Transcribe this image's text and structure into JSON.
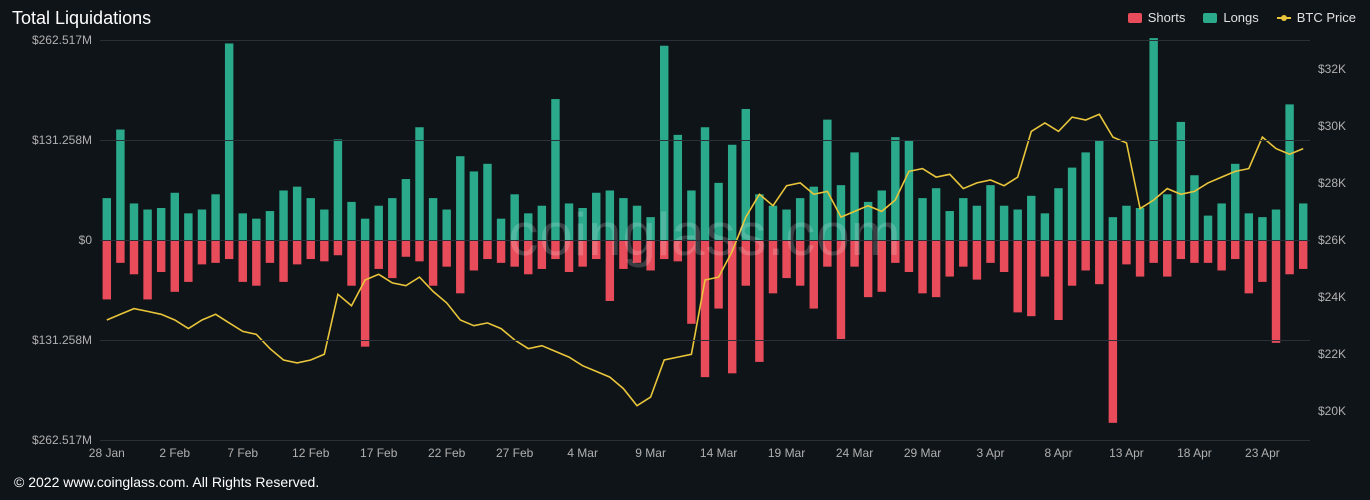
{
  "title": "Total Liquidations",
  "watermark": "coinglass.com",
  "footer": "© 2022 www.coinglass.com. All Rights Reserved.",
  "legend": {
    "shorts": {
      "label": "Shorts",
      "color": "#e84c5a"
    },
    "longs": {
      "label": "Longs",
      "color": "#2aa98b"
    },
    "price": {
      "label": "BTC Price",
      "color": "#e8c53a"
    }
  },
  "chart": {
    "background_color": "#0f1419",
    "grid_color": "#2a2f38",
    "bar_width_ratio": 0.62,
    "left_axis": {
      "max": 262.517,
      "ticks": [
        {
          "value": 262.517,
          "label": "$262.517M"
        },
        {
          "value": 131.258,
          "label": "$131.258M"
        },
        {
          "value": 0,
          "label": "$0"
        },
        {
          "value": -131.258,
          "label": "$131.258M"
        },
        {
          "value": -262.517,
          "label": "$262.517M"
        }
      ]
    },
    "right_axis": {
      "min": 19000,
      "max": 33000,
      "ticks": [
        {
          "value": 32000,
          "label": "$32K"
        },
        {
          "value": 30000,
          "label": "$30K"
        },
        {
          "value": 28000,
          "label": "$28K"
        },
        {
          "value": 26000,
          "label": "$26K"
        },
        {
          "value": 24000,
          "label": "$24K"
        },
        {
          "value": 22000,
          "label": "$22K"
        },
        {
          "value": 20000,
          "label": "$20K"
        }
      ]
    },
    "x_ticks": [
      {
        "index": 0,
        "label": "28 Jan"
      },
      {
        "index": 5,
        "label": "2 Feb"
      },
      {
        "index": 10,
        "label": "7 Feb"
      },
      {
        "index": 15,
        "label": "12 Feb"
      },
      {
        "index": 20,
        "label": "17 Feb"
      },
      {
        "index": 25,
        "label": "22 Feb"
      },
      {
        "index": 30,
        "label": "27 Feb"
      },
      {
        "index": 35,
        "label": "4 Mar"
      },
      {
        "index": 40,
        "label": "9 Mar"
      },
      {
        "index": 45,
        "label": "14 Mar"
      },
      {
        "index": 50,
        "label": "19 Mar"
      },
      {
        "index": 55,
        "label": "24 Mar"
      },
      {
        "index": 60,
        "label": "29 Mar"
      },
      {
        "index": 65,
        "label": "3 Apr"
      },
      {
        "index": 70,
        "label": "8 Apr"
      },
      {
        "index": 75,
        "label": "13 Apr"
      },
      {
        "index": 80,
        "label": "18 Apr"
      },
      {
        "index": 85,
        "label": "23 Apr"
      }
    ],
    "data": [
      {
        "longs": 55,
        "shorts": 78,
        "price": 23200
      },
      {
        "longs": 145,
        "shorts": 30,
        "price": 23400
      },
      {
        "longs": 48,
        "shorts": 45,
        "price": 23600
      },
      {
        "longs": 40,
        "shorts": 78,
        "price": 23500
      },
      {
        "longs": 42,
        "shorts": 42,
        "price": 23400
      },
      {
        "longs": 62,
        "shorts": 68,
        "price": 23200
      },
      {
        "longs": 35,
        "shorts": 55,
        "price": 22900
      },
      {
        "longs": 40,
        "shorts": 32,
        "price": 23200
      },
      {
        "longs": 60,
        "shorts": 30,
        "price": 23400
      },
      {
        "longs": 258,
        "shorts": 25,
        "price": 23100
      },
      {
        "longs": 35,
        "shorts": 55,
        "price": 22800
      },
      {
        "longs": 28,
        "shorts": 60,
        "price": 22700
      },
      {
        "longs": 38,
        "shorts": 30,
        "price": 22200
      },
      {
        "longs": 65,
        "shorts": 55,
        "price": 21800
      },
      {
        "longs": 70,
        "shorts": 32,
        "price": 21700
      },
      {
        "longs": 55,
        "shorts": 25,
        "price": 21800
      },
      {
        "longs": 40,
        "shorts": 28,
        "price": 22000
      },
      {
        "longs": 132,
        "shorts": 20,
        "price": 24100
      },
      {
        "longs": 50,
        "shorts": 60,
        "price": 23700
      },
      {
        "longs": 28,
        "shorts": 140,
        "price": 24600
      },
      {
        "longs": 45,
        "shorts": 38,
        "price": 24800
      },
      {
        "longs": 55,
        "shorts": 50,
        "price": 24500
      },
      {
        "longs": 80,
        "shorts": 22,
        "price": 24400
      },
      {
        "longs": 148,
        "shorts": 28,
        "price": 24700
      },
      {
        "longs": 55,
        "shorts": 60,
        "price": 24200
      },
      {
        "longs": 40,
        "shorts": 35,
        "price": 23800
      },
      {
        "longs": 110,
        "shorts": 70,
        "price": 23200
      },
      {
        "longs": 90,
        "shorts": 40,
        "price": 23000
      },
      {
        "longs": 100,
        "shorts": 25,
        "price": 23100
      },
      {
        "longs": 28,
        "shorts": 30,
        "price": 22900
      },
      {
        "longs": 60,
        "shorts": 35,
        "price": 22500
      },
      {
        "longs": 35,
        "shorts": 45,
        "price": 22200
      },
      {
        "longs": 45,
        "shorts": 38,
        "price": 22300
      },
      {
        "longs": 185,
        "shorts": 25,
        "price": 22100
      },
      {
        "longs": 48,
        "shorts": 42,
        "price": 21900
      },
      {
        "longs": 42,
        "shorts": 35,
        "price": 21600
      },
      {
        "longs": 62,
        "shorts": 25,
        "price": 21400
      },
      {
        "longs": 65,
        "shorts": 80,
        "price": 21200
      },
      {
        "longs": 55,
        "shorts": 38,
        "price": 20800
      },
      {
        "longs": 45,
        "shorts": 30,
        "price": 20200
      },
      {
        "longs": 30,
        "shorts": 40,
        "price": 20500
      },
      {
        "longs": 255,
        "shorts": 25,
        "price": 21800
      },
      {
        "longs": 138,
        "shorts": 28,
        "price": 21900
      },
      {
        "longs": 65,
        "shorts": 110,
        "price": 22000
      },
      {
        "longs": 148,
        "shorts": 180,
        "price": 24600
      },
      {
        "longs": 75,
        "shorts": 90,
        "price": 24700
      },
      {
        "longs": 125,
        "shorts": 175,
        "price": 25600
      },
      {
        "longs": 172,
        "shorts": 60,
        "price": 26800
      },
      {
        "longs": 60,
        "shorts": 160,
        "price": 27600
      },
      {
        "longs": 45,
        "shorts": 70,
        "price": 27200
      },
      {
        "longs": 40,
        "shorts": 50,
        "price": 27900
      },
      {
        "longs": 55,
        "shorts": 60,
        "price": 28000
      },
      {
        "longs": 70,
        "shorts": 90,
        "price": 27600
      },
      {
        "longs": 158,
        "shorts": 35,
        "price": 27700
      },
      {
        "longs": 72,
        "shorts": 130,
        "price": 26800
      },
      {
        "longs": 115,
        "shorts": 35,
        "price": 27000
      },
      {
        "longs": 50,
        "shorts": 75,
        "price": 27200
      },
      {
        "longs": 65,
        "shorts": 68,
        "price": 27000
      },
      {
        "longs": 135,
        "shorts": 30,
        "price": 27400
      },
      {
        "longs": 130,
        "shorts": 42,
        "price": 28400
      },
      {
        "longs": 55,
        "shorts": 70,
        "price": 28500
      },
      {
        "longs": 68,
        "shorts": 75,
        "price": 28200
      },
      {
        "longs": 38,
        "shorts": 48,
        "price": 28300
      },
      {
        "longs": 55,
        "shorts": 35,
        "price": 27800
      },
      {
        "longs": 45,
        "shorts": 52,
        "price": 28000
      },
      {
        "longs": 72,
        "shorts": 30,
        "price": 28100
      },
      {
        "longs": 45,
        "shorts": 42,
        "price": 27900
      },
      {
        "longs": 40,
        "shorts": 95,
        "price": 28200
      },
      {
        "longs": 58,
        "shorts": 100,
        "price": 29800
      },
      {
        "longs": 35,
        "shorts": 48,
        "price": 30100
      },
      {
        "longs": 68,
        "shorts": 105,
        "price": 29800
      },
      {
        "longs": 95,
        "shorts": 60,
        "price": 30300
      },
      {
        "longs": 115,
        "shorts": 40,
        "price": 30200
      },
      {
        "longs": 130,
        "shorts": 58,
        "price": 30400
      },
      {
        "longs": 30,
        "shorts": 240,
        "price": 29600
      },
      {
        "longs": 45,
        "shorts": 32,
        "price": 29400
      },
      {
        "longs": 42,
        "shorts": 48,
        "price": 27100
      },
      {
        "longs": 265,
        "shorts": 30,
        "price": 27400
      },
      {
        "longs": 60,
        "shorts": 48,
        "price": 27800
      },
      {
        "longs": 155,
        "shorts": 25,
        "price": 27600
      },
      {
        "longs": 85,
        "shorts": 30,
        "price": 27700
      },
      {
        "longs": 32,
        "shorts": 30,
        "price": 28000
      },
      {
        "longs": 48,
        "shorts": 40,
        "price": 28200
      },
      {
        "longs": 100,
        "shorts": 25,
        "price": 28400
      },
      {
        "longs": 35,
        "shorts": 70,
        "price": 28500
      },
      {
        "longs": 30,
        "shorts": 55,
        "price": 29600
      },
      {
        "longs": 40,
        "shorts": 135,
        "price": 29200
      },
      {
        "longs": 178,
        "shorts": 45,
        "price": 29000
      },
      {
        "longs": 48,
        "shorts": 38,
        "price": 29200
      }
    ]
  }
}
